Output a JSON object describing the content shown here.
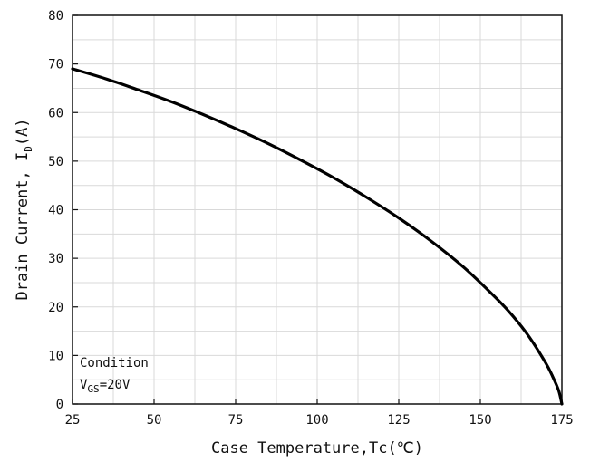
{
  "chart_data": {
    "type": "line",
    "xlabel": "Case Temperature,Tc(℃)",
    "ylabel_main": "Drain Current, I",
    "ylabel_sub": "D",
    "ylabel_tail": "(A)",
    "xlim": [
      25,
      175
    ],
    "ylim": [
      0,
      80
    ],
    "x_ticks": [
      25,
      50,
      75,
      100,
      125,
      150,
      175
    ],
    "y_ticks": [
      0,
      10,
      20,
      30,
      40,
      50,
      60,
      70,
      80
    ],
    "grid": true,
    "annotation": {
      "line1": "Condition",
      "line2_main": "V",
      "line2_sub": "GS",
      "line2_tail": "=20V"
    },
    "series": [
      {
        "x": [
          25,
          35,
          45,
          55,
          65,
          75,
          85,
          95,
          105,
          115,
          125,
          135,
          145,
          155,
          160,
          165,
          170,
          172,
          174,
          175
        ],
        "y": [
          69,
          67.0,
          64.7,
          62.3,
          59.6,
          56.7,
          53.6,
          50.2,
          46.6,
          42.6,
          38.3,
          33.5,
          28.1,
          21.7,
          18.1,
          13.8,
          8.5,
          5.9,
          2.8,
          0
        ]
      }
    ]
  }
}
